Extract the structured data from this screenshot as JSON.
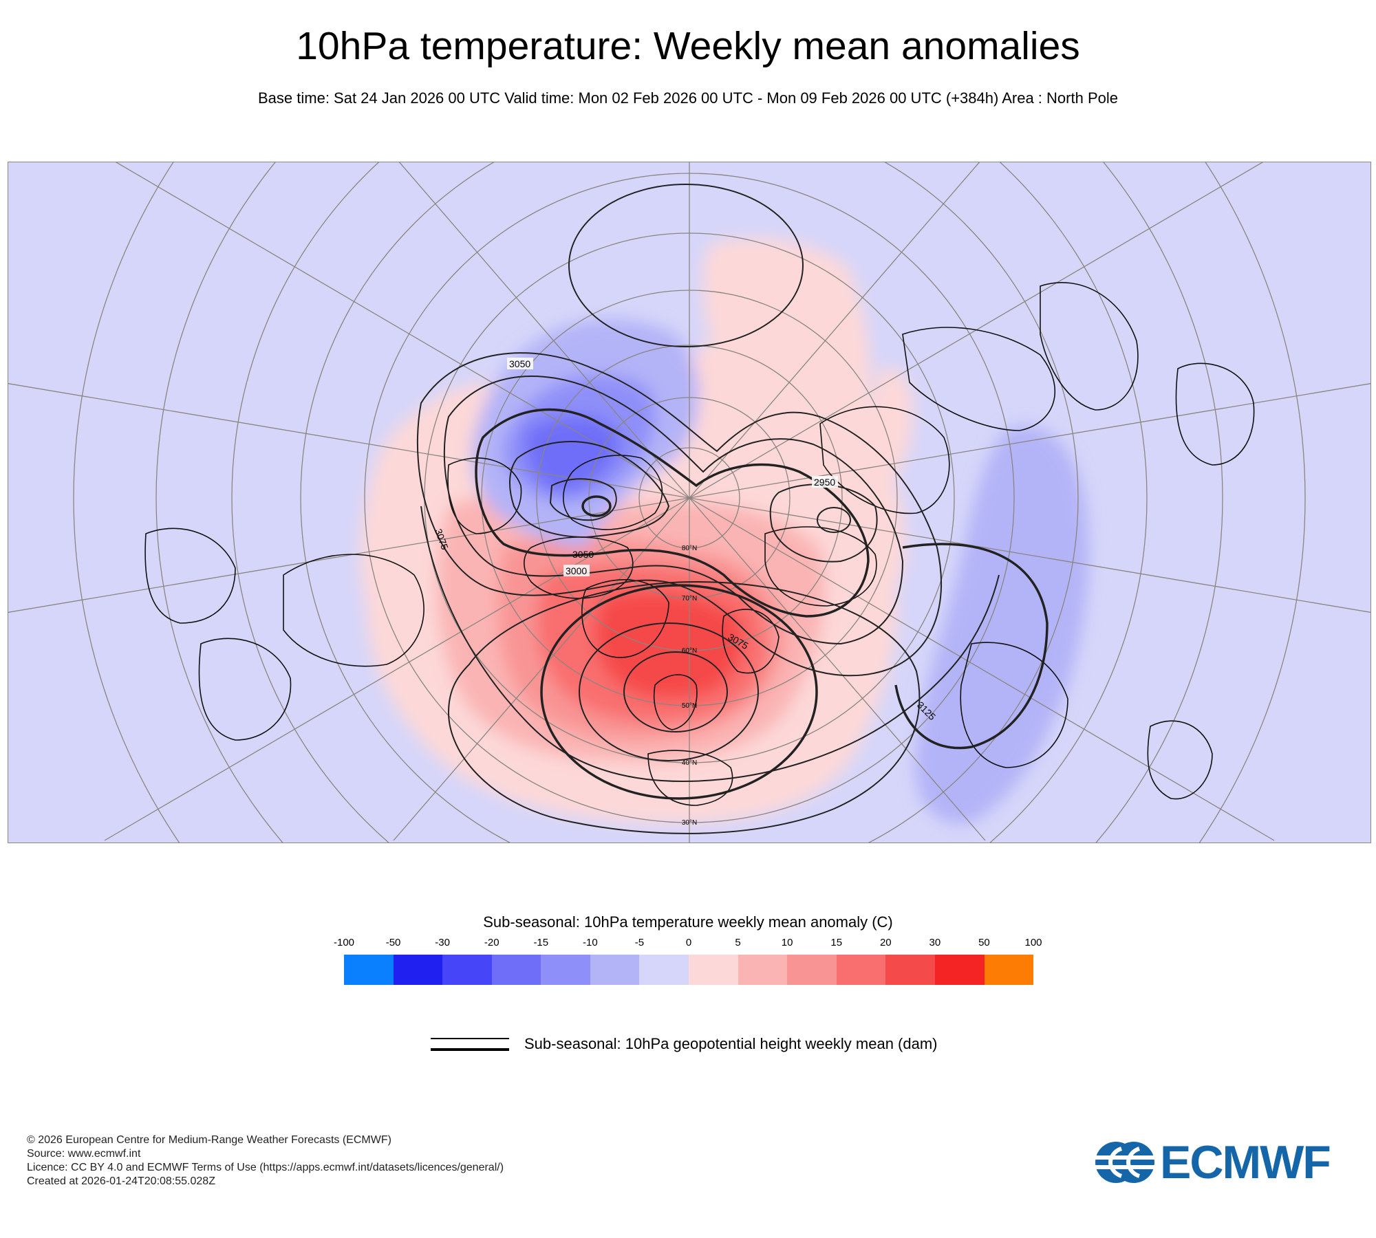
{
  "title": "10hPa temperature: Weekly mean anomalies",
  "subtitle": "Base time: Sat 24 Jan 2026 00 UTC Valid time: Mon 02 Feb 2026 00 UTC - Mon 09 Feb 2026 00 UTC (+384h) Area : North Pole",
  "map": {
    "background_color": "#d6d6fa",
    "contour_labels": [
      "3050",
      "2950",
      "3000",
      "3075",
      "3050",
      "3075",
      "3125",
      "3025"
    ],
    "latitude_labels": [
      "80°N",
      "70°N",
      "60°N",
      "50°N",
      "40°N",
      "30°N"
    ]
  },
  "legend": {
    "title": "Sub-seasonal: 10hPa temperature weekly mean anomaly (C)",
    "ticks": [
      "-100",
      "-50",
      "-30",
      "-20",
      "-15",
      "-10",
      "-5",
      "0",
      "5",
      "10",
      "15",
      "20",
      "30",
      "50",
      "100"
    ],
    "colors": [
      "#0a80ff",
      "#2020f0",
      "#4646f8",
      "#6e6ef8",
      "#8f8ff9",
      "#b3b3f8",
      "#d6d6fa",
      "#fdd8d8",
      "#fbb4b4",
      "#f99494",
      "#f96e6e",
      "#f54a4a",
      "#f42424",
      "#fd7d04"
    ]
  },
  "contour_key": {
    "label": "Sub-seasonal: 10hPa geopotential height weekly mean (dam)"
  },
  "footer": {
    "line1": "© 2026 European Centre for Medium-Range Weather Forecasts (ECMWF)",
    "line2": "Source: www.ecmwf.int",
    "line3": "Licence: CC BY 4.0 and ECMWF Terms of Use (https://apps.ecmwf.int/datasets/licences/general/)",
    "line4": "Created at 2026-01-24T20:08:55.028Z"
  },
  "logo": {
    "text": "ECMWF",
    "color": "#1566a8"
  }
}
